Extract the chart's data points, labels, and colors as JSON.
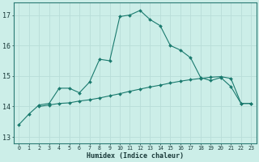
{
  "xlabel": "Humidex (Indice chaleur)",
  "bg_color": "#cceee8",
  "grid_color": "#aaddd8",
  "line_color": "#1a7a6e",
  "x_ticks": [
    0,
    1,
    2,
    3,
    4,
    5,
    6,
    7,
    8,
    9,
    10,
    11,
    12,
    13,
    14,
    15,
    16,
    17,
    18,
    19,
    20,
    21,
    22,
    23
  ],
  "y_ticks": [
    13,
    14,
    15,
    16,
    17
  ],
  "ylim": [
    12.8,
    17.4
  ],
  "xlim": [
    -0.5,
    23.5
  ],
  "line1_x": [
    0,
    1,
    2,
    3,
    4,
    5,
    6,
    7,
    8,
    9,
    10,
    11,
    12,
    13,
    14,
    15,
    16,
    17,
    18,
    19,
    20,
    21,
    22,
    23
  ],
  "line1_y": [
    13.4,
    13.75,
    14.05,
    14.1,
    14.6,
    14.6,
    14.45,
    14.8,
    15.55,
    15.5,
    16.95,
    17.0,
    17.15,
    16.85,
    16.65,
    16.0,
    15.85,
    15.6,
    14.95,
    14.85,
    14.95,
    14.65,
    14.1,
    14.1
  ],
  "line2_x": [
    2,
    3,
    4,
    5,
    6,
    7,
    8,
    9,
    10,
    11,
    12,
    13,
    14,
    15,
    16,
    17,
    18,
    19,
    20,
    21,
    22,
    23
  ],
  "line2_y": [
    14.0,
    14.05,
    14.1,
    14.12,
    14.18,
    14.22,
    14.28,
    14.35,
    14.42,
    14.5,
    14.57,
    14.64,
    14.7,
    14.77,
    14.83,
    14.88,
    14.92,
    14.96,
    14.98,
    14.92,
    14.1,
    14.1
  ],
  "xlabel_fontsize": 6.0,
  "ytick_fontsize": 6.0,
  "xtick_fontsize": 4.8
}
